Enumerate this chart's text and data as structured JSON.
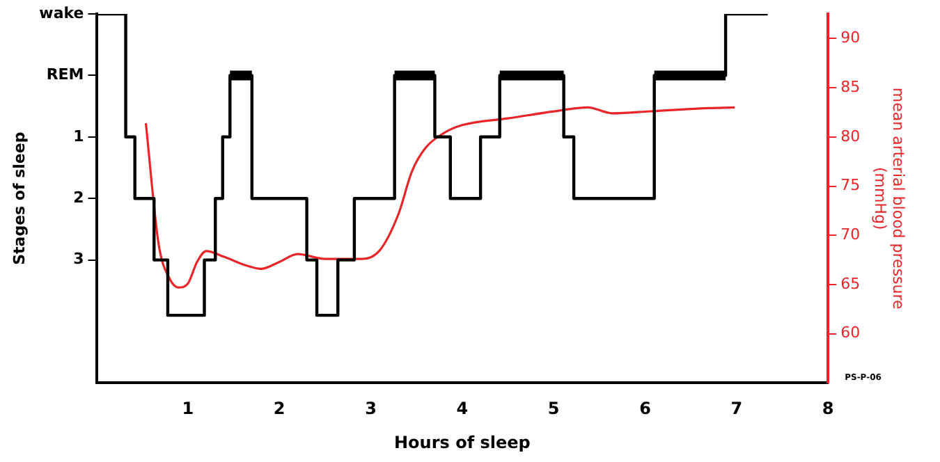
{
  "chart_data": {
    "type": "step",
    "xlabel": "Hours of sleep",
    "ylabel": "Stages of sleep",
    "y2label": "mean arterial blood pressure\n(mmHg)",
    "xlim": [
      0,
      8
    ],
    "xticks": [
      1,
      2,
      3,
      4,
      5,
      6,
      7,
      8
    ],
    "ylim": [
      5,
      -1
    ],
    "yticks": [
      {
        "value": -1,
        "label": "wake"
      },
      {
        "value": 0,
        "label": "REM"
      },
      1,
      2,
      3
    ],
    "y2lim": [
      55,
      92.5
    ],
    "y2ticks": [
      60,
      65,
      70,
      75,
      80,
      85,
      90
    ],
    "grid": false,
    "legend": false,
    "marker": "none",
    "annotations": [
      "PS-P-06"
    ],
    "series": [
      {
        "color": "#000000",
        "x": [
          0,
          0.32,
          0.42,
          0.63,
          0.78,
          1.18,
          1.3,
          1.38,
          1.46,
          1.7,
          2.3,
          2.41,
          2.64,
          2.82,
          3.26,
          3.7,
          3.87,
          4.2,
          4.41,
          5.11,
          5.22,
          6.1,
          6.88,
          7.34
        ],
        "values": [
          -1,
          1,
          2,
          3,
          3.9,
          3,
          2,
          1,
          0,
          2,
          3,
          3.9,
          3,
          2,
          0,
          1,
          2,
          1,
          0,
          1,
          2,
          0,
          -1,
          -1
        ]
      },
      {
        "type": "line",
        "color": "#000000",
        "x": [
          1.46,
          1.7,
          1.71,
          3.26,
          3.7,
          3.71,
          4.41,
          5.11,
          5.12,
          6.1,
          6.88
        ],
        "values": [
          0,
          0,
          null,
          0,
          0,
          null,
          0,
          0,
          null,
          0,
          0
        ]
      },
      {
        "type": "line",
        "axis": "y2",
        "color": "#e8262a",
        "x": [
          0.54,
          0.68,
          0.8,
          0.9,
          1.0,
          1.1,
          1.2,
          1.4,
          1.65,
          1.8,
          2.0,
          2.2,
          2.5,
          2.9,
          3.1,
          3.3,
          3.45,
          3.6,
          3.8,
          4.0,
          4.51,
          5.08,
          5.37,
          5.64,
          6.05,
          6.6,
          6.98
        ],
        "values": [
          81.4,
          69.1,
          65.6,
          64.7,
          65.1,
          67.3,
          68.4,
          67.8,
          66.9,
          66.6,
          67.3,
          68.1,
          67.6,
          67.6,
          68.5,
          72.1,
          76.5,
          78.9,
          80.4,
          81.2,
          81.9,
          82.7,
          83.0,
          82.4,
          82.6,
          82.9,
          83.0
        ]
      }
    ]
  }
}
